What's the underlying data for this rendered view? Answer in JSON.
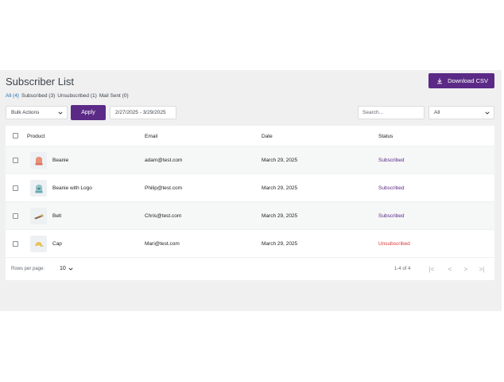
{
  "header": {
    "title": "Subscriber List",
    "download_label": "Download CSV"
  },
  "filters": [
    {
      "label": "All (4)",
      "active": true
    },
    {
      "label": "Subscribed (3)",
      "active": false
    },
    {
      "label": "Unsubscribed (1)",
      "active": false
    },
    {
      "label": "Mail Sent (0)",
      "active": false
    }
  ],
  "toolbar": {
    "bulk_actions": "Bulk Actions",
    "apply_label": "Apply",
    "date_range": "2/27/2025 - 3/29/2025",
    "search_placeholder": "Search...",
    "status_filter": "All"
  },
  "table": {
    "columns": [
      "Product",
      "Email",
      "Date",
      "Status"
    ],
    "rows": [
      {
        "product": "Beanie",
        "icon": "beanie-icon",
        "email": "adam@test.com",
        "date": "March 29, 2025",
        "status": "Subscribed"
      },
      {
        "product": "Beanie with Logo",
        "icon": "beanie-logo-icon",
        "email": "Philip@test.com",
        "date": "March 29, 2025",
        "status": "Subscribed"
      },
      {
        "product": "Belt",
        "icon": "belt-icon",
        "email": "Chris@test.com",
        "date": "March 29, 2025",
        "status": "Subscribed"
      },
      {
        "product": "Cap",
        "icon": "cap-icon",
        "email": "Mari@test.com",
        "date": "March 29, 2025",
        "status": "Unsubscribed"
      }
    ]
  },
  "footer": {
    "rows_per_page_label": "Rows per page:",
    "rows_per_page": "10",
    "range": "1-4 of 4"
  },
  "colors": {
    "accent": "#5b2a86",
    "subscribed": "#5b2a86",
    "unsubscribed": "#d63638",
    "link": "#2271b1"
  }
}
